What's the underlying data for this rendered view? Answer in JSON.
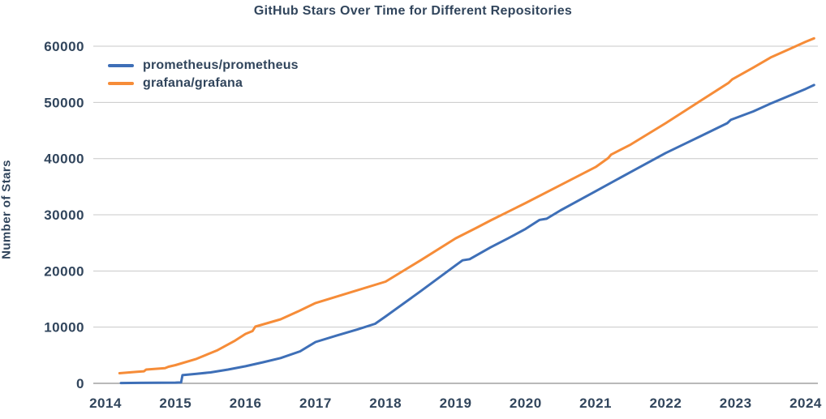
{
  "figure": {
    "title": "GitHub Stars Over Time for Different Repositories",
    "ylabel": "Number of Stars"
  },
  "chart_data": {
    "type": "line",
    "title": "GitHub Stars Over Time for Different Repositories",
    "xlabel": "",
    "ylabel": "Number of Stars",
    "x_ticks": [
      2014,
      2015,
      2016,
      2017,
      2018,
      2019,
      2020,
      2021,
      2022,
      2023,
      2024
    ],
    "x_tick_labels": [
      "2014",
      "2015",
      "2016",
      "2017",
      "2018",
      "2019",
      "2020",
      "2021",
      "2022",
      "2023",
      "2024"
    ],
    "y_ticks": [
      0,
      10000,
      20000,
      30000,
      40000,
      50000,
      60000
    ],
    "y_tick_labels": [
      "0",
      "10000",
      "20000",
      "30000",
      "40000",
      "50000",
      "60000"
    ],
    "xlim": [
      2013.826,
      2024.174
    ],
    "ylim": [
      0,
      63900
    ],
    "grid": "horizontal",
    "legend_position": "top-left",
    "colors": {
      "text": "#31455c",
      "grid": "#c8c8c8",
      "axis": "#8f8f8f",
      "background": "#ffffff",
      "prometheus": "#3e6fb7",
      "grafana": "#f68c38"
    },
    "series": [
      {
        "name": "prometheus/prometheus",
        "color": "#3e6fb7",
        "points": [
          [
            2014.22,
            60
          ],
          [
            2014.5,
            90
          ],
          [
            2014.75,
            110
          ],
          [
            2015.0,
            130
          ],
          [
            2015.08,
            160
          ],
          [
            2015.1,
            1450
          ],
          [
            2015.3,
            1700
          ],
          [
            2015.5,
            1950
          ],
          [
            2015.75,
            2450
          ],
          [
            2016.0,
            3050
          ],
          [
            2016.25,
            3750
          ],
          [
            2016.5,
            4500
          ],
          [
            2016.78,
            5700
          ],
          [
            2017.0,
            7350
          ],
          [
            2017.3,
            8500
          ],
          [
            2017.6,
            9600
          ],
          [
            2017.85,
            10600
          ],
          [
            2018.0,
            11900
          ],
          [
            2018.5,
            16400
          ],
          [
            2019.0,
            21000
          ],
          [
            2019.1,
            21900
          ],
          [
            2019.2,
            22100
          ],
          [
            2019.5,
            24200
          ],
          [
            2019.75,
            25800
          ],
          [
            2020.0,
            27500
          ],
          [
            2020.2,
            29100
          ],
          [
            2020.3,
            29300
          ],
          [
            2020.5,
            30800
          ],
          [
            2021.0,
            34200
          ],
          [
            2021.5,
            37600
          ],
          [
            2022.0,
            41000
          ],
          [
            2022.3,
            42800
          ],
          [
            2022.5,
            44000
          ],
          [
            2022.88,
            46300
          ],
          [
            2022.93,
            46900
          ],
          [
            2023.25,
            48400
          ],
          [
            2023.5,
            49800
          ],
          [
            2023.75,
            51100
          ],
          [
            2024.0,
            52400
          ],
          [
            2024.12,
            53100
          ]
        ]
      },
      {
        "name": "grafana/grafana",
        "color": "#f68c38",
        "points": [
          [
            2014.2,
            1800
          ],
          [
            2014.45,
            2050
          ],
          [
            2014.55,
            2150
          ],
          [
            2014.58,
            2450
          ],
          [
            2014.85,
            2700
          ],
          [
            2014.9,
            2950
          ],
          [
            2015.0,
            3250
          ],
          [
            2015.3,
            4350
          ],
          [
            2015.6,
            5900
          ],
          [
            2015.85,
            7600
          ],
          [
            2016.0,
            8800
          ],
          [
            2016.1,
            9300
          ],
          [
            2016.14,
            10100
          ],
          [
            2016.5,
            11400
          ],
          [
            2016.75,
            12800
          ],
          [
            2017.0,
            14300
          ],
          [
            2017.5,
            16200
          ],
          [
            2018.0,
            18100
          ],
          [
            2018.5,
            21900
          ],
          [
            2019.0,
            25800
          ],
          [
            2019.3,
            27700
          ],
          [
            2019.5,
            29000
          ],
          [
            2020.0,
            32100
          ],
          [
            2020.5,
            35300
          ],
          [
            2021.0,
            38500
          ],
          [
            2021.18,
            40100
          ],
          [
            2021.22,
            40700
          ],
          [
            2021.5,
            42500
          ],
          [
            2022.0,
            46300
          ],
          [
            2022.5,
            50300
          ],
          [
            2022.9,
            53500
          ],
          [
            2022.95,
            54100
          ],
          [
            2023.25,
            56200
          ],
          [
            2023.5,
            58000
          ],
          [
            2023.75,
            59400
          ],
          [
            2024.0,
            60800
          ],
          [
            2024.12,
            61400
          ]
        ]
      }
    ]
  }
}
